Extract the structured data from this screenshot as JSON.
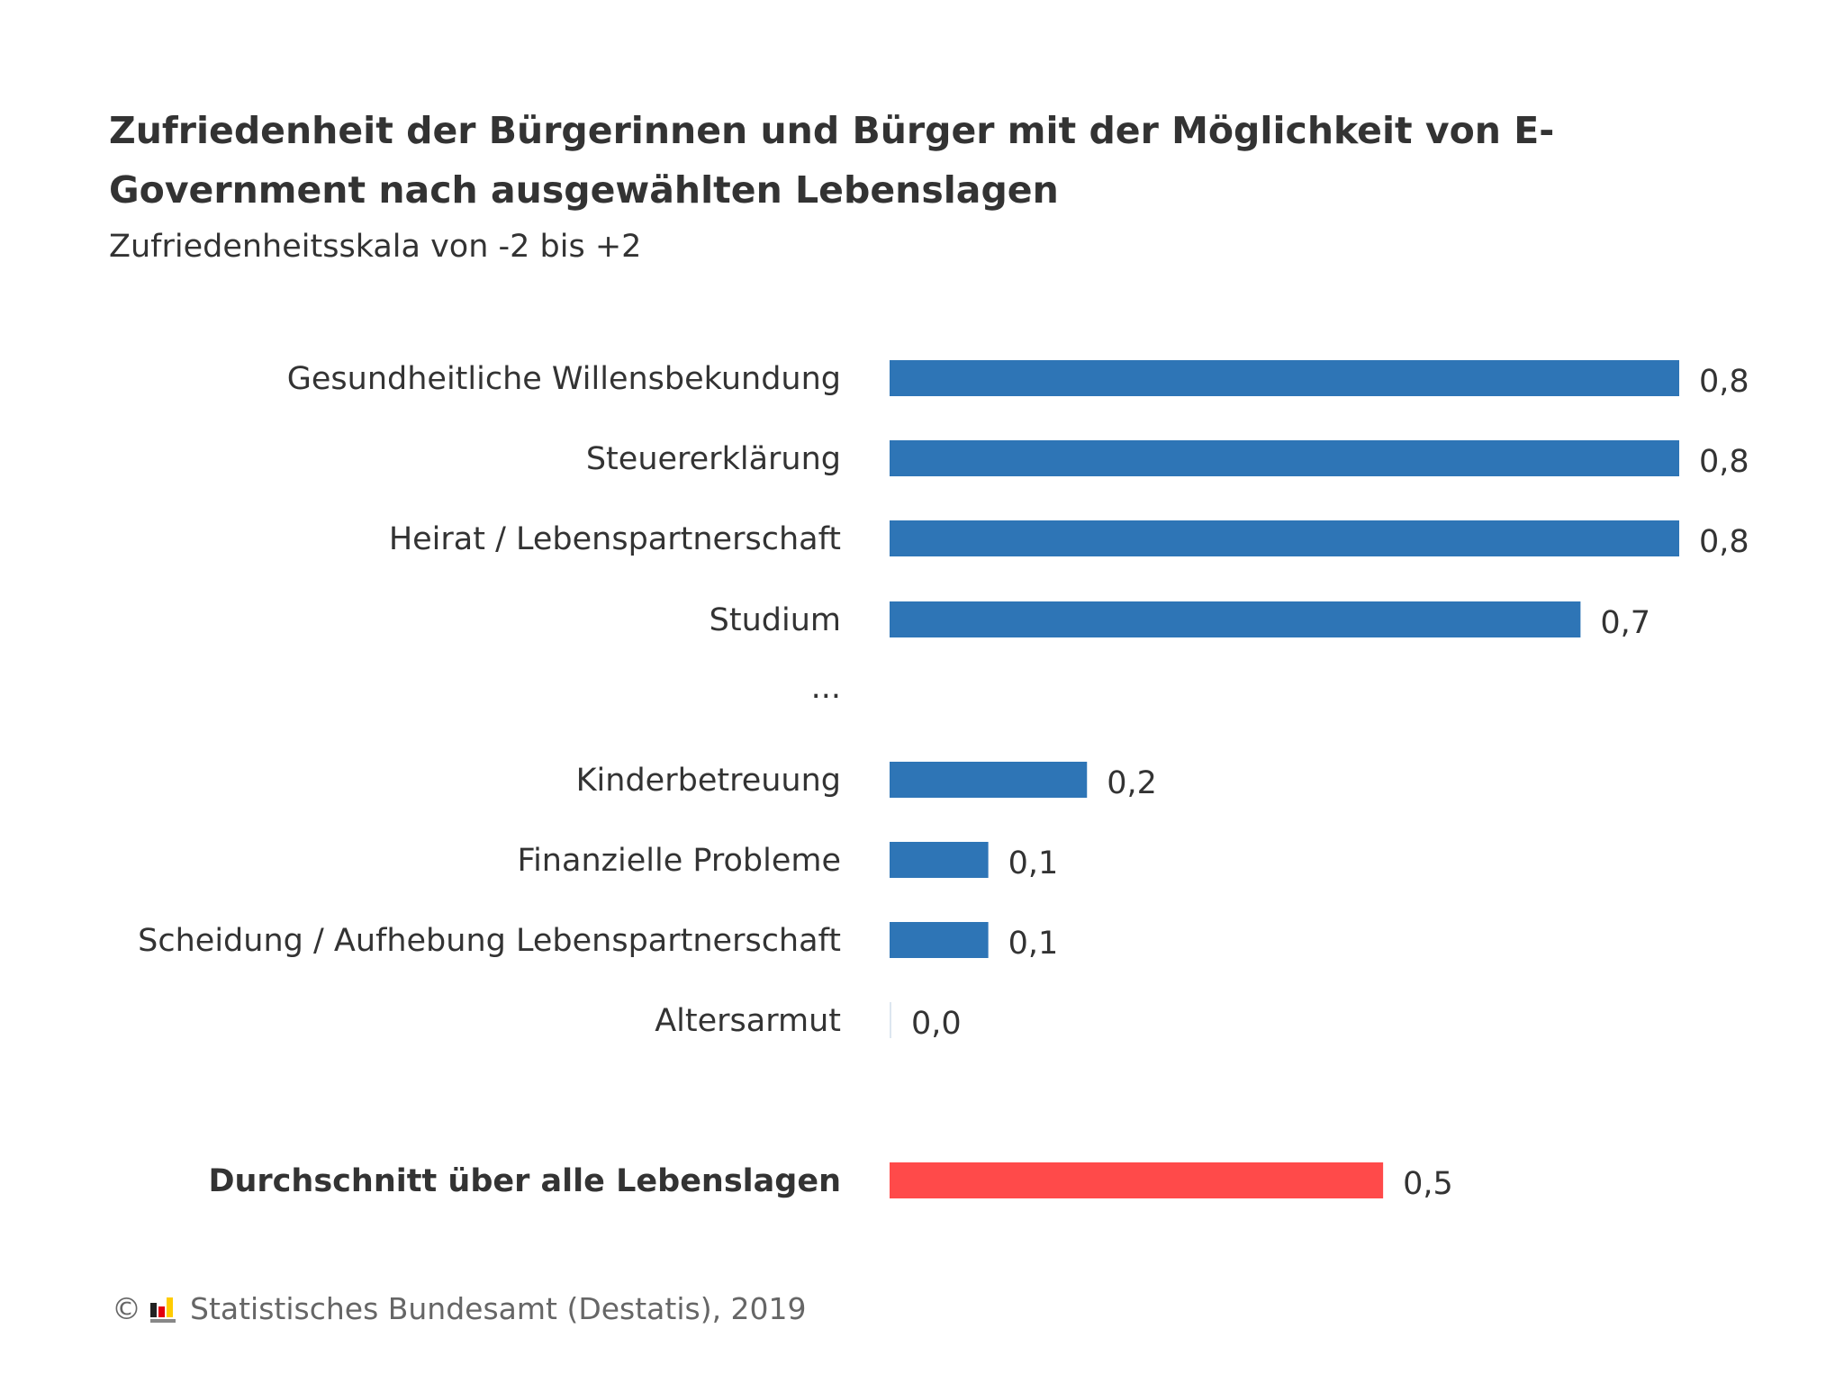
{
  "title": "Zufriedenheit der Bürgerinnen und Bürger mit der Möglichkeit von E-Government nach ausgewählten Lebenslagen",
  "subtitle": "Zufriedenheitsskala von -2 bis +2",
  "footer": {
    "copyright_symbol": "©",
    "source": "Statistisches Bundesamt (Destatis), 2019",
    "logo_icon": "destatis-logo-icon"
  },
  "chart_data": {
    "type": "bar",
    "orientation": "horizontal",
    "title": "Zufriedenheit der Bürgerinnen und Bürger mit der Möglichkeit von E-Government nach ausgewählten Lebenslagen",
    "subtitle": "Zufriedenheitsskala von -2 bis +2",
    "xlim": [
      0,
      0.8
    ],
    "grid": false,
    "legend": "none",
    "colors": {
      "bar": "#2e75b6",
      "highlight": "#ff4a4a"
    },
    "rows": [
      {
        "label": "Gesundheitliche Willensbekundung",
        "value": 0.8,
        "value_label": "0,8",
        "highlight": false
      },
      {
        "label": "Steuererklärung",
        "value": 0.8,
        "value_label": "0,8",
        "highlight": false
      },
      {
        "label": "Heirat / Lebenspartnerschaft",
        "value": 0.8,
        "value_label": "0,8",
        "highlight": false
      },
      {
        "label": "Studium",
        "value": 0.7,
        "value_label": "0,7",
        "highlight": false
      },
      {
        "label": "...",
        "value": null,
        "value_label": "",
        "highlight": false,
        "separator": true
      },
      {
        "label": "Kinderbetreuung",
        "value": 0.2,
        "value_label": "0,2",
        "highlight": false
      },
      {
        "label": "Finanzielle Probleme",
        "value": 0.1,
        "value_label": "0,1",
        "highlight": false
      },
      {
        "label": "Scheidung / Aufhebung Lebenspartnerschaft",
        "value": 0.1,
        "value_label": "0,1",
        "highlight": false
      },
      {
        "label": "Altersarmut",
        "value": 0.0,
        "value_label": "0,0",
        "highlight": false
      },
      {
        "label": "Durchschnitt über alle Lebenslagen",
        "value": 0.5,
        "value_label": "0,5",
        "highlight": true,
        "bold": true
      }
    ]
  }
}
